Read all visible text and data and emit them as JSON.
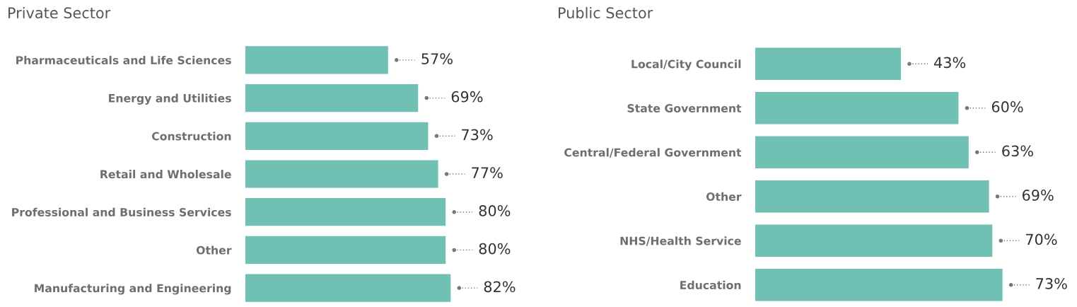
{
  "chart_data": [
    {
      "type": "bar",
      "orientation": "horizontal",
      "title": "Private Sector",
      "categories": [
        "Pharmaceuticals and Life Sciences",
        "Energy and Utilities",
        "Construction",
        "Retail and Wholesale",
        "Professional and Business Services",
        "Other",
        "Manufacturing and Engineering"
      ],
      "values": [
        57,
        69,
        73,
        77,
        80,
        80,
        82
      ],
      "value_labels": [
        "57%",
        "69%",
        "73%",
        "77%",
        "80%",
        "80%",
        "82%"
      ],
      "color": "#6ec1b3",
      "grid": false,
      "legend": false
    },
    {
      "type": "bar",
      "orientation": "horizontal",
      "title": "Public Sector",
      "categories": [
        "Local/City Council",
        "State Government",
        "Central/Federal Government",
        "Other",
        "NHS/Health Service",
        "Education"
      ],
      "values": [
        43,
        60,
        63,
        69,
        70,
        73
      ],
      "value_labels": [
        "43%",
        "60%",
        "63%",
        "69%",
        "70%",
        "73%"
      ],
      "color": "#6ec1b3",
      "grid": false,
      "legend": false
    }
  ]
}
